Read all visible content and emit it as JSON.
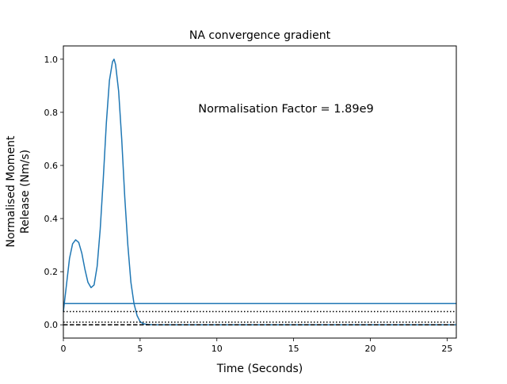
{
  "chart_data": {
    "type": "line",
    "title": "NA convergence gradient",
    "xlabel": "Time (Seconds)",
    "ylabel_lines": [
      "Normalised Moment",
      "Release (Nm/s)"
    ],
    "annotation": "Normalisation Factor = 1.89e9",
    "xlim": [
      0,
      25.6
    ],
    "ylim": [
      -0.05,
      1.05
    ],
    "xticks": [
      0,
      5,
      10,
      15,
      20,
      25
    ],
    "xtick_labels": [
      "0",
      "5",
      "10",
      "15",
      "20",
      "25"
    ],
    "yticks": [
      0.0,
      0.2,
      0.4,
      0.6,
      0.8,
      1.0
    ],
    "ytick_labels": [
      "0.0",
      "0.2",
      "0.4",
      "0.6",
      "0.8",
      "1.0"
    ],
    "grid": false,
    "colors": {
      "series": "#1f77b4",
      "reference": "#000000"
    },
    "series": [
      {
        "style": "solid",
        "color": "#1f77b4",
        "x": [
          0,
          0.2,
          0.4,
          0.6,
          0.8,
          1.0,
          1.2,
          1.4,
          1.6,
          1.8,
          2.0,
          2.2,
          2.4,
          2.6,
          2.8,
          3.0,
          3.2,
          3.3,
          3.4,
          3.6,
          3.8,
          4.0,
          4.2,
          4.4,
          4.6,
          4.8,
          5.0,
          5.2,
          5.5,
          6.0,
          7.0,
          10,
          15,
          20,
          25.6
        ],
        "y": [
          0.05,
          0.15,
          0.25,
          0.305,
          0.32,
          0.31,
          0.27,
          0.21,
          0.16,
          0.14,
          0.15,
          0.22,
          0.36,
          0.55,
          0.76,
          0.92,
          0.99,
          1.0,
          0.98,
          0.88,
          0.7,
          0.48,
          0.3,
          0.16,
          0.08,
          0.035,
          0.012,
          0.004,
          0.001,
          0.0,
          0.0,
          0.0,
          0.0,
          0.0,
          0.0
        ]
      },
      {
        "style": "solid",
        "color": "#1f77b4",
        "x": [
          0,
          25.6
        ],
        "y": [
          0.08,
          0.08
        ]
      },
      {
        "style": "dotted",
        "color": "#000000",
        "x": [
          0,
          25.6
        ],
        "y": [
          0.05,
          0.05
        ]
      },
      {
        "style": "dotted",
        "color": "#000000",
        "x": [
          0,
          25.6
        ],
        "y": [
          0.01,
          0.01
        ]
      },
      {
        "style": "dashed",
        "color": "#000000",
        "x": [
          0,
          25.6
        ],
        "y": [
          0.0,
          0.0
        ]
      }
    ]
  }
}
